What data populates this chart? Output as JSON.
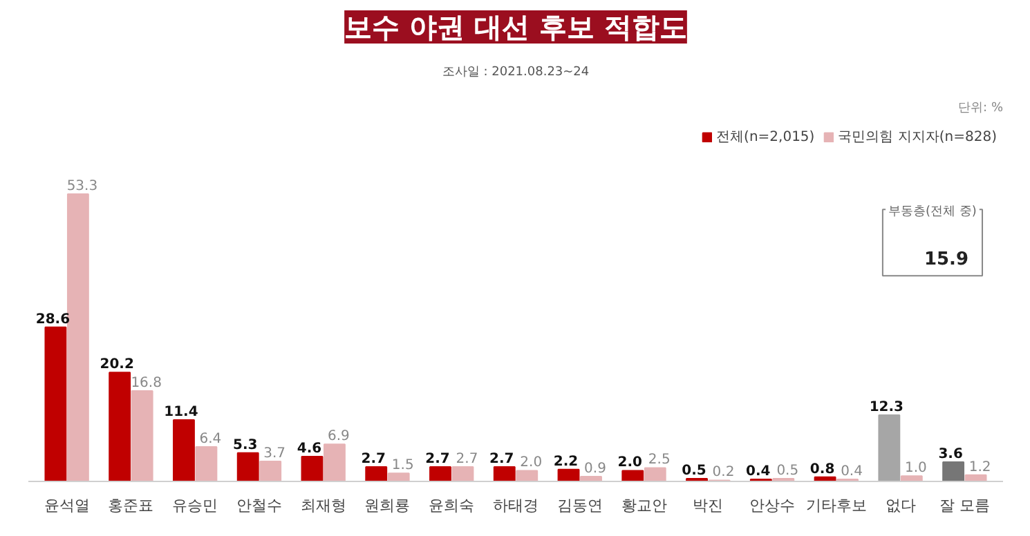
{
  "chart_data": {
    "type": "bar",
    "title": "보수 야권 대선 후보 적합도",
    "subtitle": "조사일 : 2021.08.23~24",
    "categories": [
      "윤석열",
      "홍준표",
      "유승민",
      "안철수",
      "최재형",
      "원희룡",
      "윤희숙",
      "하태경",
      "김동연",
      "황교안",
      "박진",
      "안상수",
      "기타후보",
      "없다",
      "잘 모름"
    ],
    "series": [
      {
        "name": "전체(n=2,015)",
        "color": "#c00000",
        "colors": [
          "#c00000",
          "#c00000",
          "#c00000",
          "#c00000",
          "#c00000",
          "#c00000",
          "#c00000",
          "#c00000",
          "#c00000",
          "#c00000",
          "#c00000",
          "#c00000",
          "#c00000",
          "#a6a6a6",
          "#767676"
        ],
        "values": [
          28.6,
          20.2,
          11.4,
          5.3,
          4.6,
          2.7,
          2.7,
          2.7,
          2.2,
          2.0,
          0.5,
          0.4,
          0.8,
          12.3,
          3.6
        ],
        "value_labels": [
          "28.6",
          "20.2",
          "11.4",
          "5.3",
          "4.6",
          "2.7",
          "2.7",
          "2.7",
          "2.2",
          "2.0",
          "0.5",
          "0.4",
          "0.8",
          "12.3",
          "3.6"
        ]
      },
      {
        "name": "국민의힘 지지자(n=828)",
        "color": "#e6b3b5",
        "values": [
          53.3,
          16.8,
          6.4,
          3.7,
          6.9,
          1.5,
          2.7,
          2.0,
          0.9,
          2.5,
          0.2,
          0.5,
          0.4,
          1.0,
          1.2
        ],
        "value_labels": [
          "53.3",
          "16.8",
          "6.4",
          "3.7",
          "6.9",
          "1.5",
          "2.7",
          "2.0",
          "0.9",
          "2.5",
          "0.2",
          "0.5",
          "0.4",
          "1.0",
          "1.2"
        ]
      }
    ],
    "legend": "top right",
    "grid": false,
    "annotations": [
      "단위: %",
      "부동층(전체 중)",
      "15.9"
    ]
  }
}
